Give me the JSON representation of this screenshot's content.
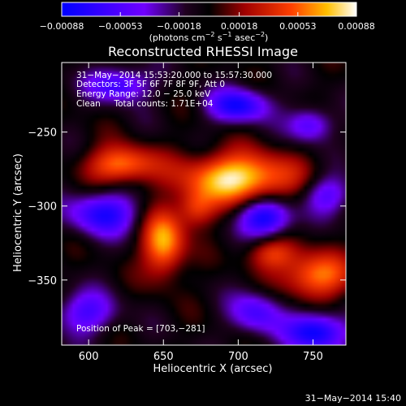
{
  "chart_data": {
    "type": "heatmap",
    "title": "Reconstructed RHESSI Image",
    "xlabel": "Heliocentric X (arcsec)",
    "ylabel": "Heliocentric Y (arcsec)",
    "xlim": [
      582,
      772
    ],
    "ylim": [
      -394,
      -203
    ],
    "x_ticks": [
      600,
      650,
      700,
      750
    ],
    "y_ticks": [
      -250,
      -300,
      -350
    ],
    "x_tick_labels": [
      "600",
      "650",
      "700",
      "750"
    ],
    "y_tick_labels": [
      "−250",
      "−300",
      "−350"
    ],
    "colorbar": {
      "min": -0.00088,
      "max": 0.00088,
      "tick_values": [
        -0.00088,
        -0.00053,
        -0.00018,
        0.00018,
        0.00053,
        0.00088
      ],
      "tick_labels": [
        "−0.00088",
        "−0.00053",
        "−0.00018",
        "0.00018",
        "0.00053",
        "0.00088"
      ],
      "units_main": "(photons cm",
      "units_exp1": "−2",
      "units_mid1": " s",
      "units_exp2": "−1",
      "units_mid2": " asec",
      "units_exp3": "−2",
      "units_end": ")"
    },
    "annotations": [
      "31−May−2014 15:53:20.000 to 15:57:30.000",
      "Detectors: 3F 5F 6F 7F 8F 9F, Att 0",
      "Energy Range: 12.0 − 25.0 keV",
      "Clean     Total counts: 1.71E+04"
    ],
    "peak_label": "Position of Peak = [703,−281]",
    "peak": {
      "x": 703,
      "y": -281
    },
    "sources": [
      {
        "x": 700,
        "y": -281,
        "sx": 26,
        "sy": 12,
        "amp": 1.0
      },
      {
        "x": 650,
        "y": -325,
        "sx": 10,
        "sy": 16,
        "amp": 0.85
      },
      {
        "x": 622,
        "y": -272,
        "sx": 16,
        "sy": 9,
        "amp": 0.75
      },
      {
        "x": 752,
        "y": -347,
        "sx": 16,
        "sy": 11,
        "amp": 0.75
      },
      {
        "x": 672,
        "y": -302,
        "sx": 9,
        "sy": 9,
        "amp": 0.5
      },
      {
        "x": 722,
        "y": -332,
        "sx": 12,
        "sy": 8,
        "amp": 0.5
      },
      {
        "x": 620,
        "y": -218,
        "sx": 14,
        "sy": 8,
        "amp": -0.7
      },
      {
        "x": 700,
        "y": -232,
        "sx": 14,
        "sy": 8,
        "amp": -0.85
      },
      {
        "x": 610,
        "y": -305,
        "sx": 16,
        "sy": 10,
        "amp": -0.8
      },
      {
        "x": 598,
        "y": -372,
        "sx": 14,
        "sy": 10,
        "amp": -0.6
      },
      {
        "x": 718,
        "y": -308,
        "sx": 12,
        "sy": 9,
        "amp": -0.95
      },
      {
        "x": 760,
        "y": -292,
        "sx": 11,
        "sy": 9,
        "amp": -0.55
      },
      {
        "x": 752,
        "y": -385,
        "sx": 14,
        "sy": 9,
        "amp": -0.95
      },
      {
        "x": 712,
        "y": -372,
        "sx": 12,
        "sy": 10,
        "amp": -0.6
      },
      {
        "x": 748,
        "y": -245,
        "sx": 10,
        "sy": 8,
        "amp": -0.6
      }
    ]
  },
  "footer": {
    "timestamp": "31−May−2014 15:40"
  }
}
